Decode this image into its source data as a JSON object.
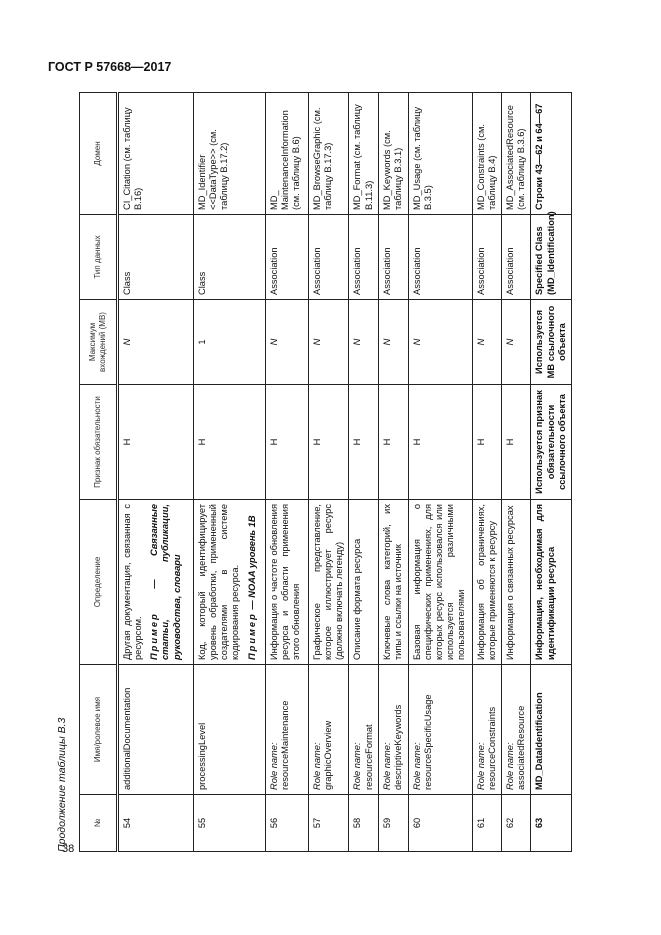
{
  "header": "ГОСТ Р 57668—2017",
  "page_number": "38",
  "caption": "Продолжение таблицы В.3",
  "columns": [
    "№",
    "Имя/ролевое имя",
    "Определение",
    "Признак обязательности",
    "Максимум вхождений (МВ)",
    "Тип данных",
    "Домен"
  ],
  "rows": [
    {
      "num": "54",
      "role": "",
      "name": "additionalDocumentation",
      "def": "Другая документация, связанная с ресурсом.",
      "note_label": "Пример",
      "note": " — Связанные статьи, публикации, руководства, словари",
      "ob": "Н",
      "max": "N",
      "type": "Class",
      "domain": "CI_Citation (см. таблицу В.16)"
    },
    {
      "num": "55",
      "role": "",
      "name": "processingLevel",
      "def": "Код, который идентифицирует уровень обработки, примененный создателями в системе кодирования ресурса.",
      "note_label": "Пример",
      "note": " — NOAA уровень 1B",
      "ob": "Н",
      "max": "1",
      "type": "Class",
      "domain": "MD_Identifier <<DataType>> (см. таблицу В.17.2)"
    },
    {
      "num": "56",
      "role": "Role name:",
      "name": "resourceMaintenance",
      "def": "Информация о частоте обновления ресурса и области применения этого обновления",
      "ob": "Н",
      "max": "N",
      "type": "Association",
      "domain": "MD_ MaintenanceInformation (см. таблицу В.6)"
    },
    {
      "num": "57",
      "role": "Role name:",
      "name": "graphicOverview",
      "def": "Графическое представление, которое иллюстрирует ресурс (должно включать легенду)",
      "ob": "Н",
      "max": "N",
      "type": "Association",
      "domain": "MD_BrowseGraphic (см. таблицу В.17.3)"
    },
    {
      "num": "58",
      "role": "Role name:",
      "name": "resourceFormat",
      "def": "Описание формата ресурса",
      "ob": "Н",
      "max": "N",
      "type": "Association",
      "domain": "MD_Format (см. таблицу В.11.3)"
    },
    {
      "num": "59",
      "role": "Role name:",
      "name": "descriptiveKeywords",
      "def": "Ключевые слова категорий, их типы и ссылки на источник",
      "ob": "Н",
      "max": "N",
      "type": "Association",
      "domain": "MD_Keywords (см. таблицу В.3.1)"
    },
    {
      "num": "60",
      "role": "Role name:",
      "name": "resourceSpecificUsage",
      "def": "Базовая информация о специфических применениях, для которых ресурс использовался или используется различными пользователями",
      "ob": "Н",
      "max": "N",
      "type": "Association",
      "domain": "MD_Usage (см. таблицу В.3.5)"
    },
    {
      "num": "61",
      "role": "Role name:",
      "name": "resourceConstraints",
      "def": "Информация об ограничениях, которые применяются к ресурсу",
      "ob": "Н",
      "max": "N",
      "type": "Association",
      "domain": "MD_Constraints (см. таблицу В.4)"
    },
    {
      "num": "62",
      "role": "Role name:",
      "name": "associatedResource",
      "def": "Информация о связанных ресурсах",
      "ob": "Н",
      "max": "N",
      "type": "Association",
      "domain": "MD_AssociatedResource (см. таблицу В.3.6)"
    },
    {
      "num": "63",
      "role": "",
      "name": "MD_DataIdentification",
      "def": "Информация, необходимая для идентификации ресурса",
      "ob": "Используется признак обязательности ссылочного объекта",
      "max": "Используется МВ ссылочного объекта",
      "type": "Specified Class (MD_Identification)",
      "domain": "Строки 43—62 и 64—67",
      "bold": true
    }
  ]
}
